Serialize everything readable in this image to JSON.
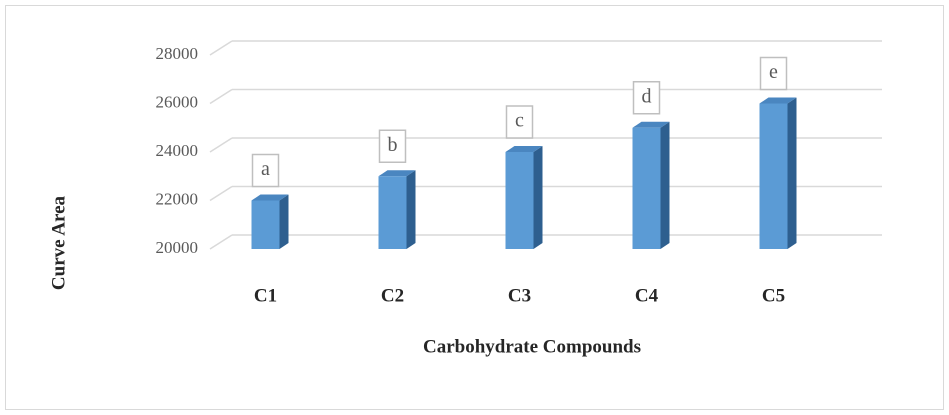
{
  "chart_data": {
    "type": "bar",
    "x_label": "Carbohydrate Compounds",
    "y_label": "Curve Area",
    "categories": [
      "C1",
      "C2",
      "C3",
      "C4",
      "C5"
    ],
    "values": [
      22000,
      23000,
      24000,
      25000,
      26000
    ],
    "annotations": [
      "a",
      "b",
      "c",
      "d",
      "e"
    ],
    "color": "#5b9bd5",
    "ylim": [
      20000,
      28000
    ],
    "yticks": [
      20000,
      22000,
      24000,
      26000,
      28000
    ],
    "grid": true
  }
}
